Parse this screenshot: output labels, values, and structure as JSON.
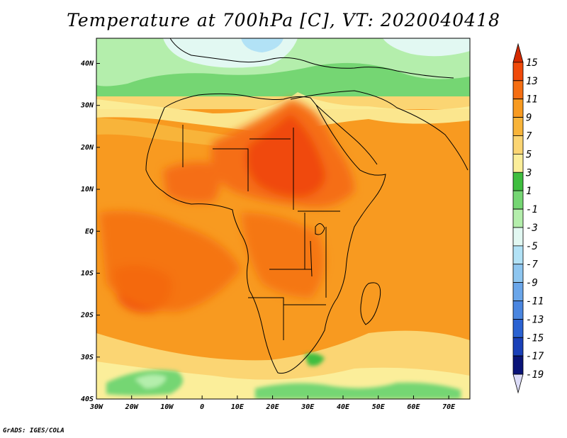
{
  "title": "Temperature at 700hPa [C], VT: 2020040418",
  "credit": "GrADS: IGES/COLA",
  "map": {
    "lon_range": [
      -30,
      76
    ],
    "lat_range": [
      -40,
      46
    ],
    "lat_ticks": [
      {
        "value": 40,
        "label": "40N"
      },
      {
        "value": 30,
        "label": "30N"
      },
      {
        "value": 20,
        "label": "20N"
      },
      {
        "value": 10,
        "label": "10N"
      },
      {
        "value": 0,
        "label": "EQ"
      },
      {
        "value": -10,
        "label": "10S"
      },
      {
        "value": -20,
        "label": "20S"
      },
      {
        "value": -30,
        "label": "30S"
      },
      {
        "value": -40,
        "label": "40S"
      }
    ],
    "lon_ticks": [
      {
        "value": -30,
        "label": "30W"
      },
      {
        "value": -20,
        "label": "20W"
      },
      {
        "value": -10,
        "label": "10W"
      },
      {
        "value": 0,
        "label": "0"
      },
      {
        "value": 10,
        "label": "10E"
      },
      {
        "value": 20,
        "label": "20E"
      },
      {
        "value": 30,
        "label": "30E"
      },
      {
        "value": 40,
        "label": "40E"
      },
      {
        "value": 50,
        "label": "50E"
      },
      {
        "value": 60,
        "label": "60E"
      },
      {
        "value": 70,
        "label": "70E"
      }
    ]
  },
  "colorbar": {
    "labels": [
      "15",
      "13",
      "11",
      "9",
      "7",
      "5",
      "3",
      "1",
      "-1",
      "-3",
      "-5",
      "-7",
      "-9",
      "-11",
      "-13",
      "-15",
      "-17",
      "-19"
    ],
    "colors": [
      "#d42a00",
      "#f04a0a",
      "#f56e12",
      "#f89a20",
      "#f8b43a",
      "#fbd573",
      "#fbee9a",
      "#3fbe3f",
      "#75d673",
      "#b4eeac",
      "#e2f8f2",
      "#b2e2f6",
      "#8ec6f0",
      "#6aa6ea",
      "#4a86e0",
      "#2a62d2",
      "#1a40b8",
      "#0a1478",
      "#dcdcf8"
    ]
  }
}
